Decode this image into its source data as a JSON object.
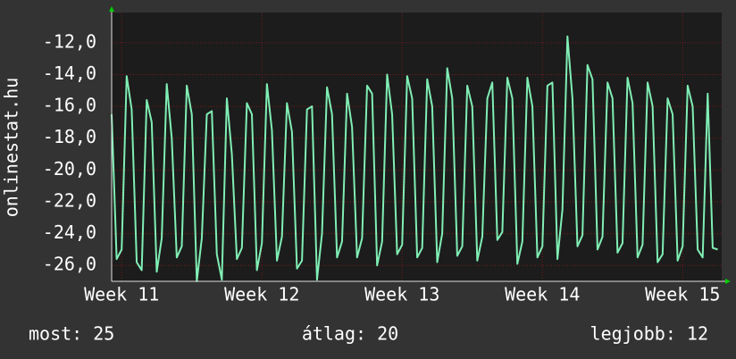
{
  "chart_data": {
    "type": "line",
    "y_label": "onlinestat.hu",
    "x": [
      0,
      0.25,
      0.5,
      0.75,
      1,
      1.25,
      1.5,
      1.75,
      2,
      2.25,
      2.5,
      2.75,
      3,
      3.25,
      3.5,
      3.75,
      4,
      4.25,
      4.5,
      4.75,
      5,
      5.25,
      5.5,
      5.75,
      6,
      6.25,
      6.5,
      6.75,
      7,
      7.25,
      7.5,
      7.75,
      8,
      8.25,
      8.5,
      8.75,
      9,
      9.25,
      9.5,
      9.75,
      10,
      10.25,
      10.5,
      10.75,
      11,
      11.25,
      11.5,
      11.75,
      12,
      12.25,
      12.5,
      12.75,
      13,
      13.25,
      13.5,
      13.75,
      14,
      14.25,
      14.5,
      14.75,
      15,
      15.25,
      15.5,
      15.75,
      16,
      16.25,
      16.5,
      16.75,
      17,
      17.25,
      17.5,
      17.75,
      18,
      18.25,
      18.5,
      18.75,
      19,
      19.25,
      19.5,
      19.75,
      20,
      20.25,
      20.5,
      20.75,
      21,
      21.25,
      21.5,
      21.75,
      22,
      22.25,
      22.5,
      22.75,
      23,
      23.25,
      23.5,
      23.75,
      24,
      24.25,
      24.5,
      24.75,
      25,
      25.25,
      25.5,
      25.75,
      26,
      26.25,
      26.5,
      26.75,
      27,
      27.25,
      27.5,
      27.75,
      28,
      28.25,
      28.5,
      28.75,
      29,
      29.25,
      29.5,
      29.75,
      30,
      30.25
    ],
    "series": [
      {
        "color": "#80eeb4",
        "values": [
          -16.5,
          -25.6,
          -25,
          -14.1,
          -16.2,
          -25.8,
          -26.3,
          -15.6,
          -17,
          -26.4,
          -24.3,
          -14.6,
          -18,
          -25.5,
          -24.8,
          -14.7,
          -16.5,
          -27,
          -24.3,
          -16.5,
          -16.3,
          -25.3,
          -26.9,
          -15.5,
          -19,
          -25.6,
          -24.9,
          -15.8,
          -16.5,
          -26.3,
          -24.6,
          -14.6,
          -17.5,
          -25.7,
          -24.2,
          -15.8,
          -17.6,
          -26.2,
          -25.7,
          -16.2,
          -16,
          -26.9,
          -24,
          -14.8,
          -16.5,
          -25.5,
          -24.5,
          -15.2,
          -17.3,
          -25.5,
          -24.3,
          -14.7,
          -15.2,
          -26,
          -24.5,
          -14,
          -16.5,
          -25.3,
          -24.7,
          -14.1,
          -15.5,
          -25.5,
          -24.9,
          -14.3,
          -16,
          -25.8,
          -24,
          -13.6,
          -15.5,
          -25.4,
          -24.8,
          -14.7,
          -16,
          -25.7,
          -24.2,
          -15.5,
          -14.5,
          -24.4,
          -23.9,
          -14.2,
          -15.5,
          -25.9,
          -24.5,
          -14.2,
          -16,
          -25.5,
          -24.8,
          -14.7,
          -14.5,
          -25.6,
          -22.5,
          -11.6,
          -15.5,
          -24.8,
          -24.1,
          -13.4,
          -14.3,
          -25,
          -24.2,
          -14.5,
          -15.5,
          -25.2,
          -24.6,
          -14.2,
          -15.8,
          -25.5,
          -24.7,
          -14.5,
          -16,
          -25.8,
          -25.3,
          -15.5,
          -16.5,
          -25.7,
          -24.8,
          -14.7,
          -16,
          -25,
          -25.5,
          -15.2,
          -24.9,
          -25
        ]
      }
    ],
    "xlim": [
      0,
      30.45
    ],
    "xticks": [
      {
        "value": 0.5,
        "label": "Week 11"
      },
      {
        "value": 7.5,
        "label": "Week 12"
      },
      {
        "value": 14.5,
        "label": "Week 13"
      },
      {
        "value": 21.5,
        "label": "Week 14"
      },
      {
        "value": 28.5,
        "label": "Week 15"
      }
    ],
    "ylim": [
      -27,
      -10.1
    ],
    "yticks": [
      {
        "value": -12,
        "label": "-12,0"
      },
      {
        "value": -14,
        "label": "-14,0"
      },
      {
        "value": -16,
        "label": "-16,0"
      },
      {
        "value": -18,
        "label": "-18,0"
      },
      {
        "value": -20,
        "label": "-20,0"
      },
      {
        "value": -22,
        "label": "-22,0"
      },
      {
        "value": -24,
        "label": "-24,0"
      },
      {
        "value": -26,
        "label": "-26,0"
      }
    ],
    "grid": true,
    "footer": [
      "most: 25",
      "átlag: 20",
      "legjobb: 12"
    ]
  }
}
